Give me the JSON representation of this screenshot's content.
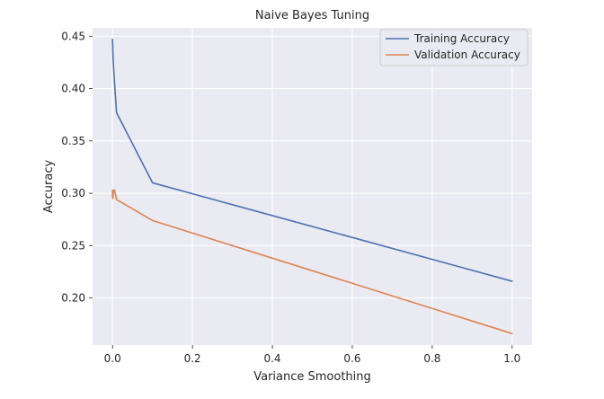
{
  "chart_data": {
    "type": "line",
    "title": "Naive Bayes Tuning",
    "xlabel": "Variance Smoothing",
    "ylabel": "Accuracy",
    "xlim": [
      -0.05,
      1.05
    ],
    "ylim": [
      0.155,
      0.458
    ],
    "xticks": [
      0.0,
      0.2,
      0.4,
      0.6,
      0.8,
      1.0
    ],
    "xtick_labels": [
      "0.0",
      "0.2",
      "0.4",
      "0.6",
      "0.8",
      "1.0"
    ],
    "yticks": [
      0.2,
      0.25,
      0.3,
      0.35,
      0.4,
      0.45
    ],
    "ytick_labels": [
      "0.20",
      "0.25",
      "0.30",
      "0.35",
      "0.40",
      "0.45"
    ],
    "grid": true,
    "legend_position": "top-right",
    "series": [
      {
        "name": "Training Accuracy",
        "color": "#4C72B0",
        "x": [
          0.0,
          0.0001,
          0.0005,
          0.001,
          0.002,
          0.005,
          0.01,
          0.1,
          1.0
        ],
        "y": [
          0.447,
          0.444,
          0.44,
          0.432,
          0.424,
          0.405,
          0.377,
          0.31,
          0.216
        ]
      },
      {
        "name": "Validation Accuracy",
        "color": "#DD8452",
        "x": [
          0.0,
          0.0001,
          0.0005,
          0.001,
          0.002,
          0.005,
          0.01,
          0.1,
          1.0
        ],
        "y": [
          0.303,
          0.297,
          0.296,
          0.295,
          0.303,
          0.303,
          0.294,
          0.274,
          0.166
        ]
      }
    ]
  }
}
